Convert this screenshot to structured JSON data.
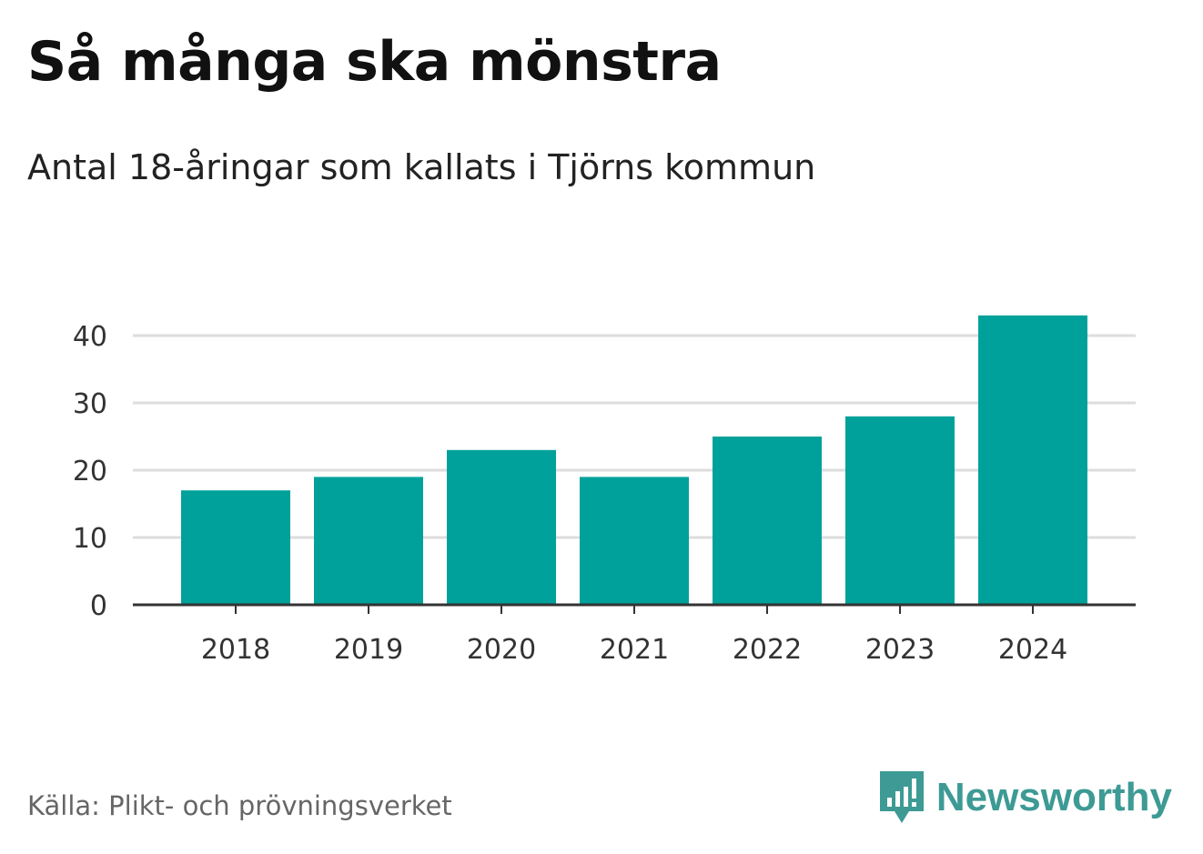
{
  "title": "Så många ska mönstra",
  "subtitle": "Antal 18-åringar som kallats i Tjörns kommun",
  "source": "Källa: Plikt- och prövningsverket",
  "brand": {
    "name": "Newsworthy",
    "icon": "newsworthy-logo-icon",
    "color": "#3d9a94"
  },
  "colors": {
    "bar": "#00a19a",
    "grid": "#dddddd",
    "axis": "#333333"
  },
  "chart_data": {
    "type": "bar",
    "title": "Så många ska mönstra",
    "subtitle": "Antal 18-åringar som kallats i Tjörns kommun",
    "categories": [
      "2018",
      "2019",
      "2020",
      "2021",
      "2022",
      "2023",
      "2024"
    ],
    "values": [
      17,
      19,
      23,
      19,
      25,
      28,
      43
    ],
    "xlabel": "",
    "ylabel": "",
    "ylim": [
      0,
      45
    ],
    "yticks": [
      0,
      10,
      20,
      30,
      40
    ],
    "grid": true
  }
}
